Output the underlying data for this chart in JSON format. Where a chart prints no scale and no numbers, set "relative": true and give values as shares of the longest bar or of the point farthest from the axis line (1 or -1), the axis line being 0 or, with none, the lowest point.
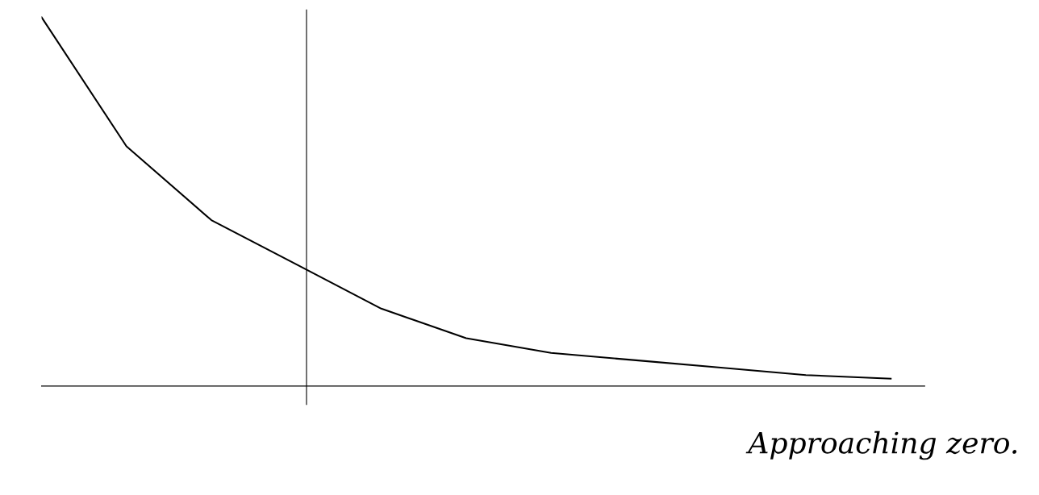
{
  "chart_data": {
    "type": "line",
    "relative": true,
    "color": "#000000",
    "categories": [
      null,
      null,
      null,
      null,
      null,
      null,
      null,
      null,
      null,
      null,
      null
    ],
    "values": [
      1,
      0.65,
      0.45,
      0.33,
      0.21,
      0.13,
      0.09,
      0.07,
      0.05,
      0.03,
      0.02
    ],
    "annotations": [
      "Approaching zero."
    ]
  }
}
